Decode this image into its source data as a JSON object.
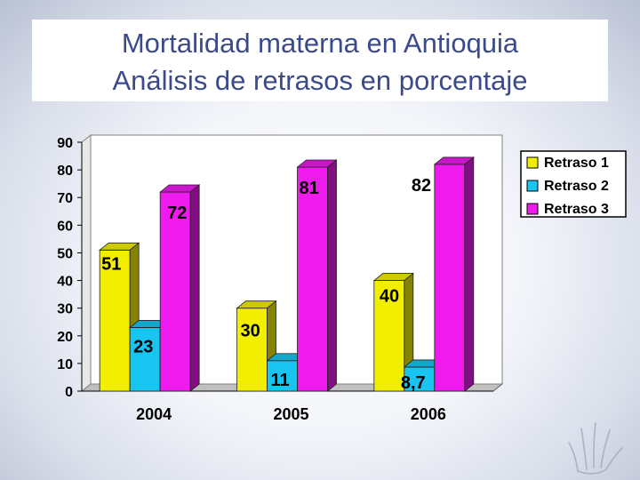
{
  "slide": {
    "title_line1": "Mortalidad materna en Antioquia",
    "title_line2": "Análisis de retrasos en porcentaje"
  },
  "chart_data": {
    "type": "bar",
    "title": "",
    "xlabel": "",
    "ylabel": "",
    "categories": [
      "2004",
      "2005",
      "2006"
    ],
    "series": [
      {
        "name": "Retraso 1",
        "values": [
          51,
          30,
          40
        ],
        "labels": [
          "51",
          "30",
          "40"
        ],
        "color": "#f2ee00"
      },
      {
        "name": "Retraso 2",
        "values": [
          23,
          11,
          8.7
        ],
        "labels": [
          "23",
          "11",
          "8,7"
        ],
        "color": "#18c4f0"
      },
      {
        "name": "Retraso 3",
        "values": [
          72,
          81,
          82
        ],
        "labels": [
          "72",
          "81",
          "82"
        ],
        "color": "#ee1aee"
      }
    ],
    "ylim": [
      0,
      90
    ],
    "yticks": [
      "0",
      "10",
      "20",
      "30",
      "40",
      "50",
      "60",
      "70",
      "80",
      "90"
    ],
    "grid": false,
    "legend_position": "right",
    "bar_style": "3d"
  }
}
